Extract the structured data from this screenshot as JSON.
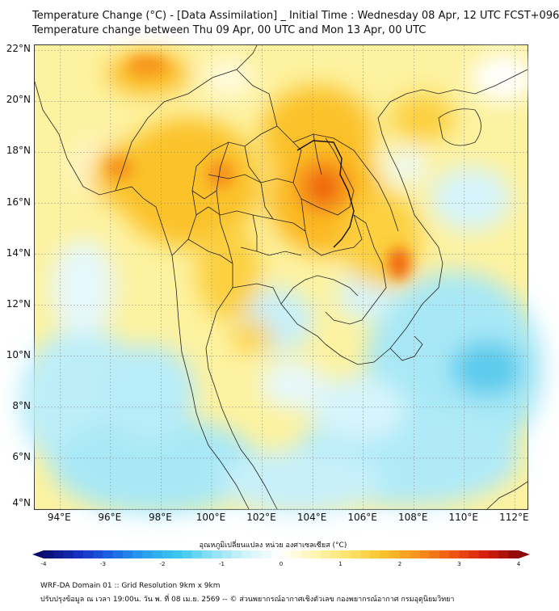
{
  "header": {
    "title_line1": "Temperature Change (°C) - [Data Assimilation] _ Initial Time : Wednesday 08 Apr, 12 UTC FCST+096",
    "title_line2": "Temperature change between Thu 09 Apr, 00 UTC and Mon 13 Apr, 00 UTC"
  },
  "map": {
    "lat_labels": [
      "22°N",
      "20°N",
      "18°N",
      "16°N",
      "14°N",
      "12°N",
      "10°N",
      "8°N",
      "6°N",
      "4°N"
    ],
    "lon_labels": [
      "94°E",
      "96°E",
      "98°E",
      "100°E",
      "102°E",
      "104°E",
      "106°E",
      "108°E",
      "110°E",
      "112°E"
    ],
    "lat_values": [
      22,
      20,
      18,
      16,
      14,
      12,
      10,
      8,
      6,
      4
    ],
    "lon_values": [
      94,
      96,
      98,
      100,
      102,
      104,
      106,
      108,
      110,
      112
    ],
    "extent": {
      "lon_min": 93.0,
      "lon_max": 112.5,
      "lat_min": 4.0,
      "lat_max": 22.2
    },
    "grid": true,
    "field_description_colors": {
      "warm_strong": "#f06a10",
      "warm": "#fbb820",
      "mild": "#fde870",
      "neutral": "#ffffff",
      "cool": "#a8e8f6",
      "cold": "#5ccbec"
    }
  },
  "colorbar": {
    "title": "อุณหภูมิเปลี่ยนแปลง หน่วย องศาเซลเซียส (°C)",
    "ticks": [
      "-4",
      "-3",
      "-2",
      "-1",
      "0",
      "1",
      "2",
      "3",
      "4"
    ],
    "tick_values": [
      -4,
      -3,
      -2,
      -1,
      0,
      1,
      2,
      3,
      4
    ],
    "range": [
      -4,
      4
    ],
    "colors": [
      "#0a0a6e",
      "#1530c0",
      "#1e64e6",
      "#2aa2f0",
      "#3cc8f2",
      "#8ee2f6",
      "#d6f4fb",
      "#ffffff",
      "#fff6b0",
      "#fde36a",
      "#fbc22c",
      "#f7941c",
      "#f05a12",
      "#d8200c",
      "#8a0808"
    ]
  },
  "footer": {
    "line1": "WRF-DA Domain 01 :: Grid Resolution 9km x 9km",
    "line2": "ปรับปรุงข้อมูล ณ เวลา 19:00น. วัน พ. ที่ 08 เม.ย. 2569 -- © ส่วนพยากรณ์อากาศเชิงตัวเลข กองพยากรณ์อากาศ กรมอุตุนิยมวิทยา"
  }
}
